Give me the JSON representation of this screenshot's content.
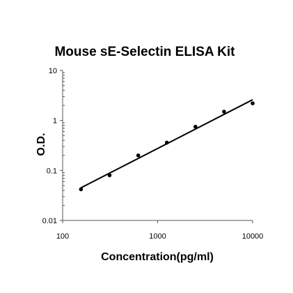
{
  "chart_data": {
    "type": "scatter",
    "title": "Mouse sE-Selectin ELISA Kit",
    "xlabel": "Concentration(pg/ml)",
    "ylabel": "O.D.",
    "xscale": "log",
    "yscale": "log",
    "xlim": [
      100,
      10000
    ],
    "ylim": [
      0.01,
      10
    ],
    "xticks": [
      "100",
      "1000",
      "10000"
    ],
    "yticks": [
      "0.01",
      "0.1",
      "1",
      "10"
    ],
    "grid": false,
    "legend": "none",
    "series": [
      {
        "points": [
          {
            "x": 156,
            "y": 0.042
          },
          {
            "x": 312,
            "y": 0.08
          },
          {
            "x": 625,
            "y": 0.2
          },
          {
            "x": 1250,
            "y": 0.36
          },
          {
            "x": 2500,
            "y": 0.75
          },
          {
            "x": 5000,
            "y": 1.5
          },
          {
            "x": 10000,
            "y": 2.2
          }
        ]
      }
    ],
    "trendline": {
      "type": "power",
      "from": {
        "x": 156,
        "y": 0.045
      },
      "to": {
        "x": 10000,
        "y": 2.6
      }
    },
    "colors": {
      "marker": "#000000",
      "line": "#000000",
      "axis": "#555555"
    }
  }
}
